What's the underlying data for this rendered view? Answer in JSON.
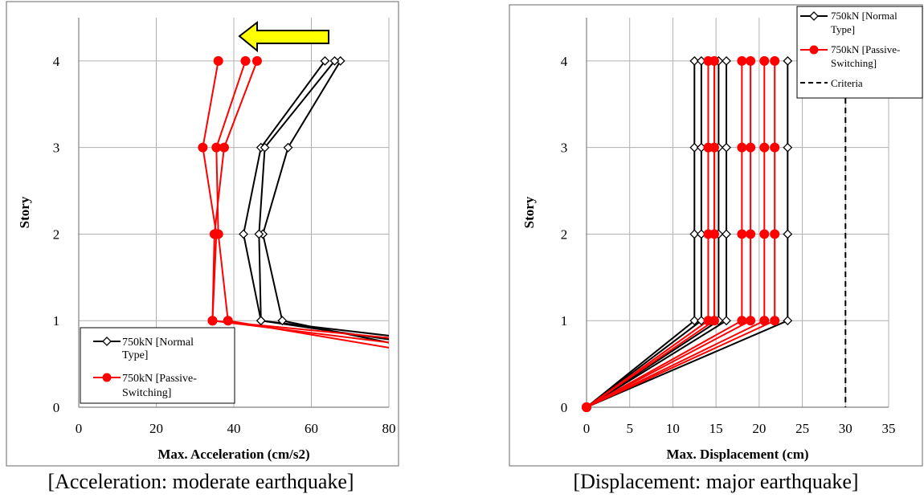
{
  "chart_data": [
    {
      "type": "line",
      "xlabel": "Max. Acceleration (cm/s2)",
      "ylabel": "Story",
      "xlim": [
        0,
        80
      ],
      "ylim": [
        0,
        4.5
      ],
      "x_ticks": [
        "0",
        "20",
        "40",
        "60",
        "80"
      ],
      "y_ticks": [
        "0",
        "1",
        "2",
        "3",
        "4"
      ],
      "grid": true,
      "legend_position": "bottom-left",
      "legend": [
        "750kN [Normal Type]",
        "750kN [Passive-Switching]"
      ],
      "caption": "[Acceleration: moderate earthquake]",
      "annotation": "yellow-arrow-left",
      "series": [
        {
          "name": "750kN [Normal Type]",
          "color": "#000000",
          "marker": "diamond-open",
          "x": [
            85,
            47,
            42.5,
            47,
            63.5
          ],
          "y": [
            0.75,
            1,
            2,
            3,
            4
          ]
        },
        {
          "name": "750kN [Normal Type]",
          "color": "#000000",
          "marker": "diamond-open",
          "x": [
            85,
            52.5,
            47.5,
            54,
            67.5
          ],
          "y": [
            0.7,
            1,
            2,
            3,
            4
          ]
        },
        {
          "name": "750kN [Normal Type]",
          "color": "#000000",
          "marker": "diamond-open",
          "x": [
            85,
            47,
            46.5,
            48,
            66
          ],
          "y": [
            0.8,
            1,
            2,
            3,
            4
          ]
        },
        {
          "name": "750kN [Passive-Switching]",
          "color": "#ff0000",
          "marker": "circle-filled",
          "x": [
            85,
            34.5,
            35.5,
            32,
            36
          ],
          "y": [
            0.78,
            1,
            2,
            3,
            4
          ]
        },
        {
          "name": "750kN [Passive-Switching]",
          "color": "#ff0000",
          "marker": "circle-filled",
          "x": [
            85,
            38.5,
            36,
            35.5,
            43
          ],
          "y": [
            0.65,
            1,
            2,
            3,
            4
          ]
        },
        {
          "name": "750kN [Passive-Switching]",
          "color": "#ff0000",
          "marker": "circle-filled",
          "x": [
            85,
            34.5,
            35,
            37.5,
            46
          ],
          "y": [
            0.72,
            1,
            2,
            3,
            4
          ]
        }
      ]
    },
    {
      "type": "line",
      "xlabel": "Max. Displacement (cm)",
      "ylabel": "Story",
      "xlim": [
        0,
        35
      ],
      "ylim": [
        0,
        4.5
      ],
      "x_ticks": [
        "0",
        "5",
        "10",
        "15",
        "20",
        "25",
        "30",
        "35"
      ],
      "y_ticks": [
        "0",
        "1",
        "2",
        "3",
        "4"
      ],
      "grid": true,
      "legend_position": "top-right",
      "legend": [
        "750kN [Normal Type]",
        "750kN [Passive-Switching]",
        "Criteria"
      ],
      "caption": "[Displacement: major earthquake]",
      "criteria_x": 30,
      "series": [
        {
          "name": "750kN [Normal Type]",
          "color": "#000000",
          "marker": "diamond-open",
          "x": [
            0,
            12.5,
            12.5,
            12.5,
            12.5
          ],
          "y": [
            0,
            1,
            2,
            3,
            4
          ]
        },
        {
          "name": "750kN [Normal Type]",
          "color": "#000000",
          "marker": "diamond-open",
          "x": [
            0,
            13.3,
            13.3,
            13.3,
            13.3
          ],
          "y": [
            0,
            1,
            2,
            3,
            4
          ]
        },
        {
          "name": "750kN [Normal Type]",
          "color": "#000000",
          "marker": "diamond-open",
          "x": [
            0,
            15.3,
            15.3,
            15.3,
            15.3
          ],
          "y": [
            0,
            1,
            2,
            3,
            4
          ]
        },
        {
          "name": "750kN [Normal Type]",
          "color": "#000000",
          "marker": "diamond-open",
          "x": [
            0,
            16.2,
            16.2,
            16.2,
            16.2
          ],
          "y": [
            0,
            1,
            2,
            3,
            4
          ]
        },
        {
          "name": "750kN [Normal Type]",
          "color": "#000000",
          "marker": "diamond-open",
          "x": [
            0,
            23.3,
            23.3,
            23.3,
            23.3
          ],
          "y": [
            0,
            1,
            2,
            3,
            4
          ]
        },
        {
          "name": "750kN [Passive-Switching]",
          "color": "#ff0000",
          "marker": "circle-filled",
          "x": [
            0,
            14.1,
            14.1,
            14.1,
            14.1
          ],
          "y": [
            0,
            1,
            2,
            3,
            4
          ]
        },
        {
          "name": "750kN [Passive-Switching]",
          "color": "#ff0000",
          "marker": "circle-filled",
          "x": [
            0,
            14.8,
            14.8,
            14.8,
            14.8
          ],
          "y": [
            0,
            1,
            2,
            3,
            4
          ]
        },
        {
          "name": "750kN [Passive-Switching]",
          "color": "#ff0000",
          "marker": "circle-filled",
          "x": [
            0,
            18.0,
            18.0,
            18.0,
            18.0
          ],
          "y": [
            0,
            1,
            2,
            3,
            4
          ]
        },
        {
          "name": "750kN [Passive-Switching]",
          "color": "#ff0000",
          "marker": "circle-filled",
          "x": [
            0,
            19.0,
            19.0,
            19.0,
            19.0
          ],
          "y": [
            0,
            1,
            2,
            3,
            4
          ]
        },
        {
          "name": "750kN [Passive-Switching]",
          "color": "#ff0000",
          "marker": "circle-filled",
          "x": [
            0,
            20.6,
            20.6,
            20.6,
            20.6
          ],
          "y": [
            0,
            1,
            2,
            3,
            4
          ]
        },
        {
          "name": "750kN [Passive-Switching]",
          "color": "#ff0000",
          "marker": "circle-filled",
          "x": [
            0,
            21.8,
            21.8,
            21.8,
            21.8
          ],
          "y": [
            0,
            1,
            2,
            3,
            4
          ]
        }
      ]
    }
  ]
}
